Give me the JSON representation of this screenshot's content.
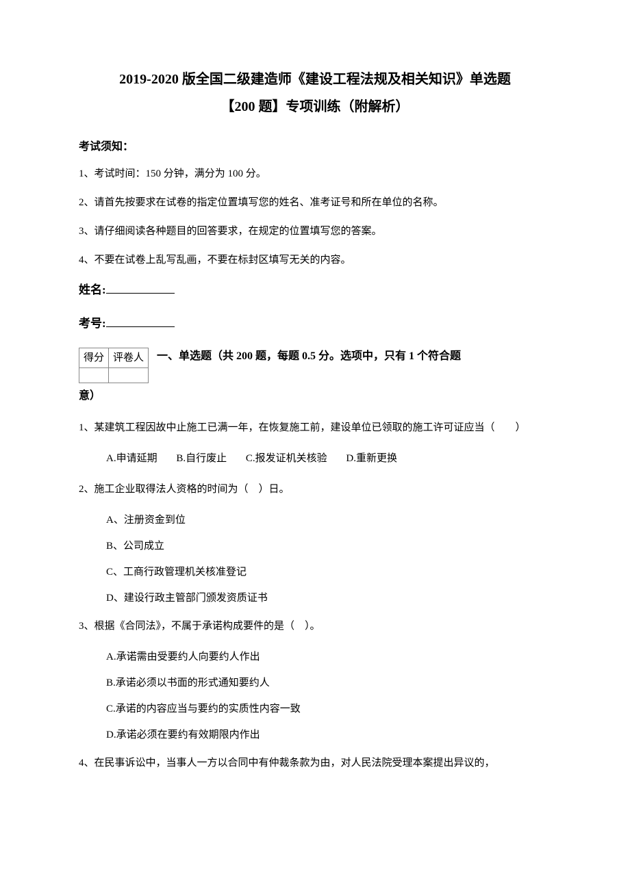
{
  "title_line1": "2019-2020 版全国二级建造师《建设工程法规及相关知识》单选题",
  "title_line2": "【200 题】专项训练（附解析）",
  "instructions_header": "考试须知：",
  "instructions": [
    "1、考试时间：150 分钟，满分为 100 分。",
    "2、请首先按要求在试卷的指定位置填写您的姓名、准考证号和所在单位的名称。",
    "3、请仔细阅读各种题目的回答要求，在规定的位置填写您的答案。",
    "4、不要在试卷上乱写乱画，不要在标封区填写无关的内容。"
  ],
  "name_label": "姓名:",
  "id_label": "考号:",
  "score_table": {
    "header_score": "得分",
    "header_reviewer": "评卷人"
  },
  "section1_title": "一、单选题（共 200 题，每题 0.5 分。选项中，只有 1 个符合题",
  "section1_title_cont": "意）",
  "questions": [
    {
      "stem": "1、某建筑工程因故中止施工已满一年，在恢复施工前，建设单位已领取的施工许可证应当（　　）",
      "options_inline": [
        "A.申请延期",
        "B.自行废止",
        "C.报发证机关核验",
        "D.重新更换"
      ]
    },
    {
      "stem": "2、施工企业取得法人资格的时间为（　）日。",
      "options_block": [
        "A、注册资金到位",
        "B、公司成立",
        "C、工商行政管理机关核准登记",
        "D、建设行政主管部门颁发资质证书"
      ]
    },
    {
      "stem": "3、根据《合同法》，不属于承诺构成要件的是（　）。",
      "options_block": [
        "A.承诺需由受要约人向要约人作出",
        "B.承诺必须以书面的形式通知要约人",
        "C.承诺的内容应当与要约的实质性内容一致",
        "D.承诺必须在要约有效期限内作出"
      ]
    },
    {
      "stem": "4、在民事诉讼中，当事人一方以合同中有仲裁条款为由，对人民法院受理本案提出异议的，"
    }
  ]
}
